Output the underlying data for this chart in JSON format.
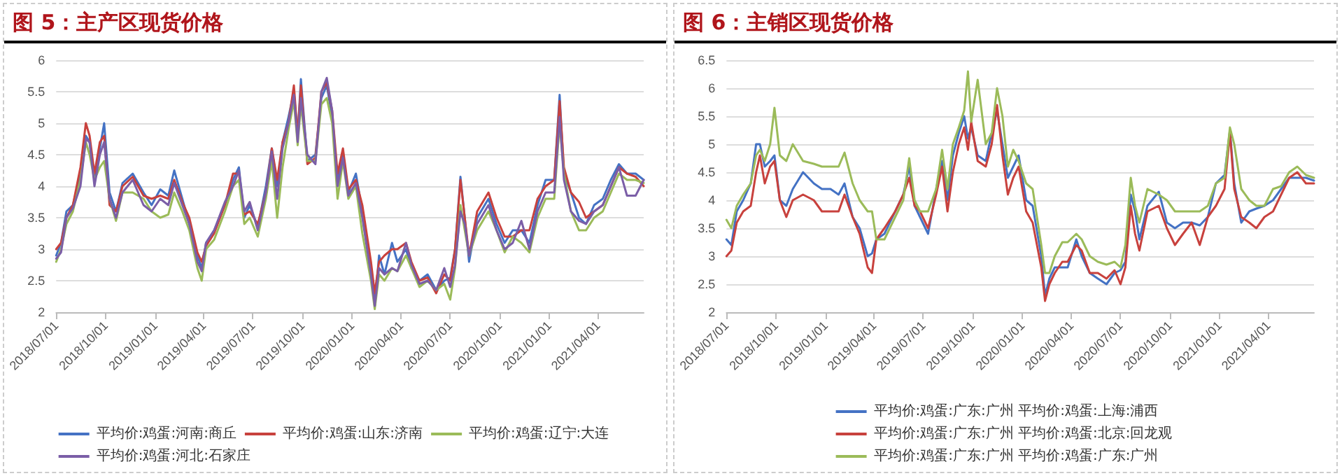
{
  "chart_data": [
    {
      "type": "line",
      "title": "图 5：主产区现货价格",
      "marker": "none",
      "grid": "y",
      "legend": "bottom",
      "xlim": [
        "2018-07-01",
        "2021-06-25"
      ],
      "xticks": [
        {
          "value": "2018-07-01",
          "label": "2018/07/01"
        },
        {
          "value": "2018-10-01",
          "label": "2018/10/01"
        },
        {
          "value": "2019-01-01",
          "label": "2019/01/01"
        },
        {
          "value": "2019-04-01",
          "label": "2019/04/01"
        },
        {
          "value": "2019-07-01",
          "label": "2019/07/01"
        },
        {
          "value": "2019-10-01",
          "label": "2019/10/01"
        },
        {
          "value": "2020-01-01",
          "label": "2020/01/01"
        },
        {
          "value": "2020-04-01",
          "label": "2020/04/01"
        },
        {
          "value": "2020-07-01",
          "label": "2020/07/01"
        },
        {
          "value": "2020-10-01",
          "label": "2020/10/01"
        },
        {
          "value": "2021-01-01",
          "label": "2021/01/01"
        },
        {
          "value": "2021-04-01",
          "label": "2021/04/01"
        }
      ],
      "ylim": [
        2,
        6
      ],
      "yticks": [
        2,
        2.5,
        3,
        3.5,
        4,
        4.5,
        5,
        5.5,
        6
      ],
      "x": [
        "2018-07-01",
        "2018-07-10",
        "2018-07-20",
        "2018-08-01",
        "2018-08-15",
        "2018-08-25",
        "2018-09-01",
        "2018-09-10",
        "2018-09-20",
        "2018-09-28",
        "2018-10-08",
        "2018-10-20",
        "2018-11-01",
        "2018-11-20",
        "2018-12-10",
        "2018-12-25",
        "2019-01-10",
        "2019-01-25",
        "2019-02-05",
        "2019-02-20",
        "2019-03-05",
        "2019-03-20",
        "2019-03-28",
        "2019-04-05",
        "2019-04-20",
        "2019-05-10",
        "2019-05-25",
        "2019-06-05",
        "2019-06-15",
        "2019-06-25",
        "2019-07-10",
        "2019-07-25",
        "2019-08-05",
        "2019-08-15",
        "2019-08-25",
        "2019-09-05",
        "2019-09-15",
        "2019-09-22",
        "2019-09-28",
        "2019-10-10",
        "2019-10-25",
        "2019-11-05",
        "2019-11-15",
        "2019-11-25",
        "2019-12-05",
        "2019-12-15",
        "2019-12-25",
        "2020-01-08",
        "2020-01-20",
        "2020-02-05",
        "2020-02-12",
        "2020-02-20",
        "2020-03-01",
        "2020-03-15",
        "2020-03-25",
        "2020-04-10",
        "2020-04-20",
        "2020-05-05",
        "2020-05-20",
        "2020-06-05",
        "2020-06-20",
        "2020-07-01",
        "2020-07-10",
        "2020-07-20",
        "2020-07-28",
        "2020-08-05",
        "2020-08-20",
        "2020-09-10",
        "2020-09-25",
        "2020-10-10",
        "2020-10-25",
        "2020-11-10",
        "2020-11-25",
        "2020-12-10",
        "2020-12-25",
        "2021-01-10",
        "2021-01-20",
        "2021-01-28",
        "2021-02-10",
        "2021-02-25",
        "2021-03-10",
        "2021-03-25",
        "2021-04-10",
        "2021-04-25",
        "2021-05-10",
        "2021-05-25",
        "2021-06-10",
        "2021-06-25"
      ],
      "series": [
        {
          "name": "平均价:鸡蛋:河南:商丘",
          "color": "#4472c4",
          "values": [
            2.9,
            3.1,
            3.6,
            3.7,
            4.2,
            4.8,
            4.7,
            4.1,
            4.6,
            5.0,
            3.9,
            3.6,
            4.05,
            4.2,
            3.9,
            3.7,
            3.95,
            3.85,
            4.25,
            3.8,
            3.4,
            2.9,
            2.7,
            3.1,
            3.3,
            3.7,
            4.1,
            4.3,
            3.5,
            3.7,
            3.35,
            4.0,
            4.6,
            4.0,
            4.7,
            5.1,
            5.5,
            4.8,
            5.7,
            4.4,
            4.5,
            5.4,
            5.6,
            5.1,
            4.1,
            4.5,
            3.9,
            4.2,
            3.6,
            2.7,
            2.1,
            2.9,
            2.6,
            3.1,
            2.8,
            3.0,
            2.7,
            2.5,
            2.6,
            2.35,
            2.5,
            2.55,
            3.0,
            4.15,
            3.5,
            2.8,
            3.5,
            3.8,
            3.4,
            3.1,
            3.3,
            3.3,
            3.1,
            3.7,
            4.1,
            4.1,
            5.45,
            4.2,
            3.9,
            3.5,
            3.4,
            3.7,
            3.8,
            4.1,
            4.35,
            4.2,
            4.2,
            4.1
          ]
        },
        {
          "name": "平均价:鸡蛋:山东:济南",
          "color": "#c8413d",
          "values": [
            3.0,
            3.1,
            3.5,
            3.7,
            4.3,
            5.0,
            4.8,
            4.2,
            4.7,
            4.8,
            3.7,
            3.6,
            4.0,
            4.15,
            3.85,
            3.8,
            3.85,
            3.8,
            4.1,
            3.75,
            3.5,
            2.95,
            2.8,
            3.05,
            3.25,
            3.7,
            4.2,
            4.2,
            3.55,
            3.6,
            3.4,
            3.9,
            4.6,
            4.1,
            4.7,
            5.0,
            5.6,
            4.8,
            5.6,
            4.35,
            4.45,
            5.5,
            5.65,
            5.2,
            4.2,
            4.6,
            3.95,
            4.1,
            3.7,
            2.8,
            2.3,
            2.8,
            2.9,
            3.0,
            3.0,
            3.1,
            2.8,
            2.5,
            2.55,
            2.3,
            2.6,
            2.5,
            3.0,
            4.1,
            3.5,
            2.9,
            3.6,
            3.9,
            3.5,
            3.2,
            3.2,
            3.3,
            3.3,
            3.8,
            4.0,
            4.1,
            5.35,
            4.3,
            3.9,
            3.75,
            3.5,
            3.6,
            3.7,
            4.0,
            4.3,
            4.2,
            4.15,
            4.0
          ]
        },
        {
          "name": "平均价:鸡蛋:辽宁:大连",
          "color": "#9bbb59",
          "values": [
            2.8,
            3.0,
            3.4,
            3.6,
            4.1,
            4.7,
            4.5,
            4.1,
            4.3,
            4.4,
            3.8,
            3.45,
            3.9,
            3.9,
            3.8,
            3.6,
            3.5,
            3.55,
            3.9,
            3.6,
            3.3,
            2.7,
            2.5,
            3.0,
            3.15,
            3.6,
            4.0,
            4.1,
            3.4,
            3.5,
            3.2,
            3.8,
            4.4,
            3.5,
            4.3,
            4.9,
            5.35,
            4.65,
            5.3,
            4.4,
            4.4,
            5.3,
            5.4,
            5.0,
            3.8,
            4.4,
            3.8,
            4.0,
            3.25,
            2.5,
            2.05,
            2.6,
            2.5,
            2.7,
            2.65,
            2.9,
            2.7,
            2.4,
            2.5,
            2.35,
            2.45,
            2.2,
            2.7,
            3.7,
            3.3,
            2.9,
            3.3,
            3.6,
            3.3,
            2.95,
            3.2,
            3.1,
            2.95,
            3.5,
            3.8,
            3.8,
            5.0,
            4.2,
            3.6,
            3.3,
            3.3,
            3.5,
            3.6,
            3.9,
            4.2,
            4.1,
            4.1,
            4.05
          ]
        },
        {
          "name": "平均价:鸡蛋:河北:石家庄",
          "color": "#7b5ea7",
          "values": [
            2.85,
            2.95,
            3.5,
            3.65,
            4.0,
            4.75,
            4.7,
            4.0,
            4.5,
            4.7,
            3.8,
            3.5,
            3.9,
            4.1,
            3.7,
            3.6,
            3.8,
            3.7,
            4.05,
            3.7,
            3.4,
            2.8,
            2.65,
            3.1,
            3.3,
            3.75,
            4.0,
            4.25,
            3.6,
            3.75,
            3.3,
            3.9,
            4.55,
            3.8,
            4.6,
            5.0,
            5.45,
            4.7,
            5.4,
            4.5,
            4.35,
            5.5,
            5.72,
            5.2,
            4.0,
            4.45,
            3.85,
            4.05,
            3.5,
            2.6,
            2.1,
            2.7,
            2.6,
            2.7,
            2.65,
            3.1,
            2.75,
            2.45,
            2.5,
            2.35,
            2.7,
            2.4,
            2.75,
            3.6,
            3.4,
            2.9,
            3.4,
            3.7,
            3.3,
            3.0,
            3.1,
            3.45,
            3.0,
            3.6,
            3.9,
            3.9,
            5.1,
            4.1,
            3.6,
            3.45,
            3.4,
            3.6,
            3.7,
            4.0,
            4.3,
            3.85,
            3.85,
            4.1
          ]
        }
      ]
    },
    {
      "type": "line",
      "title": "图 6：主销区现货价格",
      "marker": "none",
      "grid": "y",
      "legend": "bottom",
      "xlim": [
        "2018-07-01",
        "2021-06-25"
      ],
      "xticks": [
        {
          "value": "2018-07-01",
          "label": "2018/07/01"
        },
        {
          "value": "2018-10-01",
          "label": "2018/10/01"
        },
        {
          "value": "2019-01-01",
          "label": "2019/01/01"
        },
        {
          "value": "2019-04-01",
          "label": "2019/04/01"
        },
        {
          "value": "2019-07-01",
          "label": "2019/07/01"
        },
        {
          "value": "2019-10-01",
          "label": "2019/10/01"
        },
        {
          "value": "2020-01-01",
          "label": "2020/01/01"
        },
        {
          "value": "2020-04-01",
          "label": "2020/04/01"
        },
        {
          "value": "2020-07-01",
          "label": "2020/07/01"
        },
        {
          "value": "2020-10-01",
          "label": "2020/10/01"
        },
        {
          "value": "2021-01-01",
          "label": "2021/01/01"
        },
        {
          "value": "2021-04-01",
          "label": "2021/04/01"
        }
      ],
      "ylim": [
        2,
        6.5
      ],
      "yticks": [
        2,
        2.5,
        3,
        3.5,
        4,
        4.5,
        5,
        5.5,
        6,
        6.5
      ],
      "x": [
        "2018-07-01",
        "2018-07-10",
        "2018-07-20",
        "2018-08-01",
        "2018-08-15",
        "2018-08-25",
        "2018-09-01",
        "2018-09-10",
        "2018-09-20",
        "2018-09-28",
        "2018-10-08",
        "2018-10-20",
        "2018-11-01",
        "2018-11-20",
        "2018-12-10",
        "2018-12-25",
        "2019-01-10",
        "2019-01-25",
        "2019-02-05",
        "2019-02-20",
        "2019-03-05",
        "2019-03-20",
        "2019-03-28",
        "2019-04-05",
        "2019-04-20",
        "2019-05-10",
        "2019-05-25",
        "2019-06-05",
        "2019-06-15",
        "2019-06-25",
        "2019-07-10",
        "2019-07-25",
        "2019-08-05",
        "2019-08-15",
        "2019-08-25",
        "2019-09-05",
        "2019-09-15",
        "2019-09-22",
        "2019-09-28",
        "2019-10-10",
        "2019-10-25",
        "2019-11-05",
        "2019-11-15",
        "2019-11-25",
        "2019-12-05",
        "2019-12-15",
        "2019-12-25",
        "2020-01-08",
        "2020-01-20",
        "2020-02-05",
        "2020-02-12",
        "2020-02-20",
        "2020-03-01",
        "2020-03-15",
        "2020-03-25",
        "2020-04-10",
        "2020-04-20",
        "2020-05-05",
        "2020-05-20",
        "2020-06-05",
        "2020-06-20",
        "2020-07-01",
        "2020-07-10",
        "2020-07-20",
        "2020-07-28",
        "2020-08-05",
        "2020-08-20",
        "2020-09-10",
        "2020-09-25",
        "2020-10-10",
        "2020-10-25",
        "2020-11-10",
        "2020-11-25",
        "2020-12-10",
        "2020-12-25",
        "2021-01-10",
        "2021-01-20",
        "2021-01-28",
        "2021-02-10",
        "2021-02-25",
        "2021-03-10",
        "2021-03-25",
        "2021-04-10",
        "2021-04-25",
        "2021-05-10",
        "2021-05-25",
        "2021-06-10",
        "2021-06-25"
      ],
      "series": [
        {
          "name": "平均价:鸡蛋:广东:广州 平均价:鸡蛋:上海:浦西",
          "color": "#4472c4",
          "values": [
            3.3,
            3.2,
            3.8,
            4.0,
            4.3,
            5.0,
            5.0,
            4.6,
            4.7,
            4.8,
            4.0,
            3.9,
            4.2,
            4.5,
            4.3,
            4.2,
            4.2,
            4.1,
            4.3,
            3.7,
            3.5,
            3.0,
            3.05,
            3.3,
            3.4,
            3.8,
            4.1,
            4.6,
            3.9,
            3.7,
            3.4,
            4.2,
            4.7,
            4.0,
            4.8,
            5.2,
            5.5,
            5.1,
            5.3,
            4.8,
            4.7,
            5.2,
            5.6,
            5.0,
            4.4,
            4.6,
            4.8,
            4.0,
            3.9,
            3.0,
            2.3,
            2.6,
            2.8,
            2.8,
            2.8,
            3.3,
            3.0,
            2.7,
            2.6,
            2.5,
            2.7,
            2.75,
            2.9,
            4.1,
            3.8,
            3.3,
            3.9,
            4.15,
            3.6,
            3.5,
            3.6,
            3.6,
            3.55,
            3.7,
            4.3,
            4.45,
            5.25,
            4.3,
            3.6,
            3.8,
            3.85,
            3.9,
            4.0,
            4.2,
            4.4,
            4.4,
            4.4,
            4.35
          ]
        },
        {
          "name": "平均价:鸡蛋:广东:广州 平均价:鸡蛋:北京:回龙观",
          "color": "#c8413d",
          "values": [
            3.0,
            3.1,
            3.6,
            3.8,
            3.9,
            4.5,
            4.8,
            4.3,
            4.6,
            4.7,
            4.0,
            3.7,
            4.0,
            4.1,
            4.0,
            3.8,
            3.8,
            3.8,
            4.1,
            3.7,
            3.4,
            2.8,
            2.7,
            3.3,
            3.5,
            3.8,
            4.1,
            4.4,
            3.9,
            3.8,
            3.5,
            4.1,
            4.6,
            3.8,
            4.5,
            5.0,
            5.3,
            4.9,
            5.4,
            4.7,
            4.6,
            5.0,
            5.7,
            4.8,
            4.1,
            4.4,
            4.6,
            3.8,
            3.6,
            2.8,
            2.2,
            2.5,
            2.7,
            2.9,
            2.9,
            3.2,
            3.1,
            2.7,
            2.7,
            2.6,
            2.75,
            2.5,
            2.8,
            3.9,
            3.4,
            3.1,
            3.8,
            3.9,
            3.5,
            3.2,
            3.4,
            3.6,
            3.2,
            3.7,
            3.9,
            4.2,
            5.2,
            4.2,
            3.7,
            3.6,
            3.5,
            3.7,
            3.8,
            4.1,
            4.4,
            4.5,
            4.3,
            4.3
          ]
        },
        {
          "name": "平均价:鸡蛋:广东:广州 平均价:鸡蛋:广东:广州",
          "color": "#9bbb59",
          "values": [
            3.65,
            3.5,
            3.9,
            4.1,
            4.3,
            4.8,
            4.9,
            4.7,
            5.0,
            5.65,
            4.8,
            4.7,
            5.0,
            4.7,
            4.65,
            4.6,
            4.6,
            4.6,
            4.85,
            4.3,
            4.0,
            3.8,
            3.8,
            3.3,
            3.3,
            3.7,
            4.0,
            4.75,
            4.0,
            3.8,
            3.8,
            4.2,
            4.9,
            4.2,
            5.0,
            5.3,
            5.6,
            6.3,
            5.4,
            6.15,
            5.0,
            5.2,
            6.0,
            5.5,
            4.6,
            4.9,
            4.7,
            4.3,
            4.2,
            3.2,
            2.7,
            2.7,
            3.0,
            3.25,
            3.25,
            3.4,
            3.3,
            3.0,
            2.9,
            2.85,
            2.9,
            2.8,
            3.2,
            4.4,
            3.9,
            3.6,
            4.2,
            4.1,
            4.0,
            3.8,
            3.8,
            3.8,
            3.8,
            3.9,
            4.3,
            4.4,
            5.3,
            5.0,
            4.2,
            4.0,
            3.9,
            3.9,
            4.2,
            4.25,
            4.5,
            4.6,
            4.45,
            4.4
          ]
        }
      ]
    }
  ]
}
